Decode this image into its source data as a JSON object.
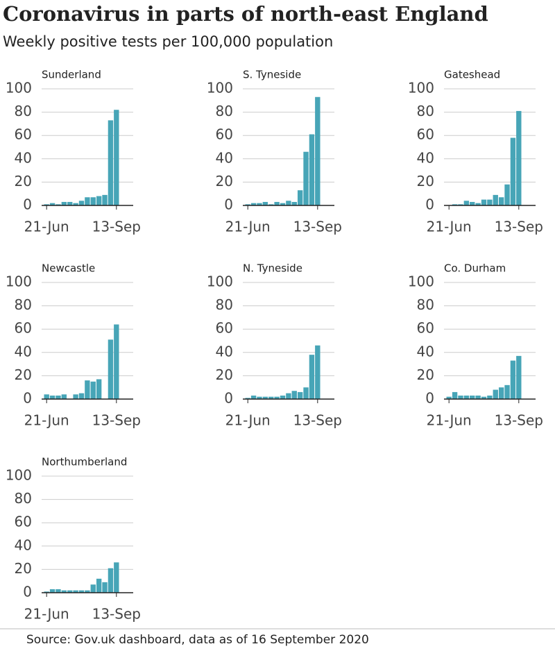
{
  "title": "Coronavirus in parts of north-east England",
  "subtitle": "Weekly positive tests per 100,000 population",
  "source": "Source: Gov.uk dashboard, data as of 16 September 2020",
  "chart_data": [
    {
      "type": "bar",
      "title": "Sunderland",
      "categories": [
        "21-Jun",
        null,
        null,
        null,
        null,
        null,
        null,
        null,
        null,
        null,
        null,
        null,
        "13-Sep"
      ],
      "values": [
        1,
        2,
        1,
        3,
        3,
        2,
        4,
        7,
        7,
        8,
        9,
        73,
        82
      ],
      "color": "#47a5b7",
      "ylim": [
        0,
        100
      ],
      "yticks": [
        0,
        20,
        40,
        60,
        80,
        100
      ],
      "grid": true
    },
    {
      "type": "bar",
      "title": "S. Tyneside",
      "categories": [
        "21-Jun",
        null,
        null,
        null,
        null,
        null,
        null,
        null,
        null,
        null,
        null,
        null,
        "13-Sep"
      ],
      "values": [
        1,
        2,
        2,
        3,
        1,
        3,
        2,
        4,
        3,
        13,
        46,
        61,
        93
      ],
      "color": "#47a5b7",
      "ylim": [
        0,
        100
      ],
      "yticks": [
        0,
        20,
        40,
        60,
        80,
        100
      ],
      "grid": true
    },
    {
      "type": "bar",
      "title": "Gateshead",
      "categories": [
        "21-Jun",
        null,
        null,
        null,
        null,
        null,
        null,
        null,
        null,
        null,
        null,
        null,
        "13-Sep"
      ],
      "values": [
        0,
        1,
        1,
        4,
        3,
        2,
        5,
        5,
        9,
        7,
        18,
        58,
        81
      ],
      "color": "#47a5b7",
      "ylim": [
        0,
        100
      ],
      "yticks": [
        0,
        20,
        40,
        60,
        80,
        100
      ],
      "grid": true
    },
    {
      "type": "bar",
      "title": "Newcastle",
      "categories": [
        "21-Jun",
        null,
        null,
        null,
        null,
        null,
        null,
        null,
        null,
        null,
        null,
        null,
        "13-Sep"
      ],
      "values": [
        4,
        3,
        3,
        4,
        0,
        4,
        5,
        16,
        15,
        17,
        0,
        51,
        64
      ],
      "color": "#47a5b7",
      "ylim": [
        0,
        100
      ],
      "yticks": [
        0,
        20,
        40,
        60,
        80,
        100
      ],
      "grid": true
    },
    {
      "type": "bar",
      "title": "N. Tyneside",
      "categories": [
        "21-Jun",
        null,
        null,
        null,
        null,
        null,
        null,
        null,
        null,
        null,
        null,
        null,
        "13-Sep"
      ],
      "values": [
        1,
        3,
        2,
        2,
        2,
        2,
        3,
        5,
        7,
        6,
        10,
        38,
        46
      ],
      "color": "#47a5b7",
      "ylim": [
        0,
        100
      ],
      "yticks": [
        0,
        20,
        40,
        60,
        80,
        100
      ],
      "grid": true
    },
    {
      "type": "bar",
      "title": "Co. Durham",
      "categories": [
        "21-Jun",
        null,
        null,
        null,
        null,
        null,
        null,
        null,
        null,
        null,
        null,
        null,
        "13-Sep"
      ],
      "values": [
        2,
        6,
        3,
        3,
        3,
        3,
        2,
        3,
        8,
        10,
        12,
        33,
        37
      ],
      "color": "#47a5b7",
      "ylim": [
        0,
        100
      ],
      "yticks": [
        0,
        20,
        40,
        60,
        80,
        100
      ],
      "grid": true
    },
    {
      "type": "bar",
      "title": "Northumberland",
      "categories": [
        "21-Jun",
        null,
        null,
        null,
        null,
        null,
        null,
        null,
        null,
        null,
        null,
        null,
        "13-Sep"
      ],
      "values": [
        1,
        3,
        3,
        2,
        2,
        2,
        2,
        2,
        7,
        12,
        9,
        21,
        26
      ],
      "color": "#47a5b7",
      "ylim": [
        0,
        100
      ],
      "yticks": [
        0,
        20,
        40,
        60,
        80,
        100
      ],
      "grid": true
    }
  ]
}
